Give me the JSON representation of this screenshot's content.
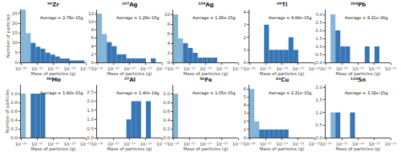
{
  "chart_data": [
    {
      "type": "histogram",
      "title": "⁹⁰Zr",
      "annotation": "Average = 2.78e-15g",
      "log": "x",
      "grid": false,
      "xlabel": "Mass of particles (g)",
      "ylabel": "Number of particles",
      "xlim": [
        1e-16,
        1e-12
      ],
      "xticks": [
        {
          "value": 1e-16,
          "label": "10⁻¹⁶"
        },
        {
          "value": 1e-15,
          "label": "10⁻¹⁵"
        },
        {
          "value": 1e-14,
          "label": "10⁻¹⁴"
        },
        {
          "value": 1e-13,
          "label": "10⁻¹³"
        },
        {
          "value": 1e-12,
          "label": "10⁻¹²"
        }
      ],
      "ylim": [
        0,
        27
      ],
      "yticks": [
        0,
        5,
        10,
        15,
        20,
        25
      ],
      "x_left": [
        1e-16,
        2e-16,
        4e-16,
        8e-16,
        1.6e-15,
        3.2e-15,
        6.4e-15,
        1.28e-14,
        2.56e-14,
        5.12e-14,
        1.024e-13,
        2.048e-13,
        4.096e-13
      ],
      "x_right": [
        2e-16,
        4e-16,
        8e-16,
        1.6e-15,
        3.2e-15,
        6.4e-15,
        1.28e-14,
        2.56e-14,
        5.12e-14,
        1.024e-13,
        2.048e-13,
        4.096e-13,
        8.192e-13
      ],
      "values": [
        27,
        15,
        10,
        8,
        7,
        5,
        4,
        3,
        2,
        2,
        1,
        1,
        1
      ],
      "colors": [
        "#74add1",
        "#74add1",
        "#2166ac",
        "#2166ac",
        "#2166ac",
        "#2166ac",
        "#2166ac",
        "#2166ac",
        "#2166ac",
        "#2166ac",
        "#2166ac",
        "#2166ac",
        "#2166ac"
      ],
      "shaded_region": {
        "x": [
          1e-16,
          3.2e-16
        ],
        "color": "#f4a6a0"
      },
      "vline": {
        "x": 2.78e-15,
        "color": "#cc2222"
      }
    },
    {
      "type": "histogram",
      "title": "¹⁰⁷Ag",
      "annotation": "Average = 1.29e-15g",
      "log": "x",
      "grid": false,
      "xlabel": "Mass of particles (g)",
      "xlim": [
        1e-16,
        1e-12
      ],
      "xticks": [
        {
          "value": 1e-16,
          "label": "10⁻¹⁶"
        },
        {
          "value": 1e-15,
          "label": "10⁻¹⁵"
        },
        {
          "value": 1e-14,
          "label": "10⁻¹⁴"
        },
        {
          "value": 1e-13,
          "label": "10⁻¹³"
        },
        {
          "value": 1e-12,
          "label": "10⁻¹²"
        }
      ],
      "ylim": [
        0,
        13
      ],
      "yticks": [
        0,
        2,
        4,
        6,
        8,
        10,
        12
      ],
      "x_left": [
        1e-16,
        2e-16,
        4e-16,
        8e-16,
        1.6e-15,
        3.2e-15,
        6.4e-15,
        1.28e-14,
        2.56e-14,
        5.12e-14,
        2.048e-13
      ],
      "x_right": [
        2e-16,
        4e-16,
        8e-16,
        1.6e-15,
        3.2e-15,
        6.4e-15,
        1.28e-14,
        2.56e-14,
        5.12e-14,
        1.024e-13,
        4.096e-13
      ],
      "values": [
        12,
        7,
        5,
        4,
        2,
        2,
        1,
        1,
        1,
        1,
        1
      ],
      "colors": [
        "#74add1",
        "#74add1",
        "#2166ac",
        "#2166ac",
        "#2166ac",
        "#2166ac",
        "#2166ac",
        "#2166ac",
        "#2166ac",
        "#2166ac",
        "#2166ac"
      ],
      "shaded_region": {
        "x": [
          1e-16,
          3.2e-16
        ],
        "color": "#f4a6a0"
      },
      "vline": {
        "x": 1.29e-15,
        "color": "#cc2222"
      }
    },
    {
      "type": "histogram",
      "title": "¹⁰⁹Ag",
      "annotation": "Average = 1.26e-15g",
      "log": "x",
      "grid": false,
      "xlabel": "Mass of particles (g)",
      "xlim": [
        1e-16,
        1e-12
      ],
      "xticks": [
        {
          "value": 1e-16,
          "label": "10⁻¹⁶"
        },
        {
          "value": 1e-15,
          "label": "10⁻¹⁵"
        },
        {
          "value": 1e-14,
          "label": "10⁻¹⁴"
        },
        {
          "value": 1e-13,
          "label": "10⁻¹³"
        },
        {
          "value": 1e-12,
          "label": "10⁻¹²"
        }
      ],
      "ylim": [
        0,
        11
      ],
      "yticks": [
        0,
        2,
        4,
        6,
        8,
        10
      ],
      "x_left": [
        1e-16,
        2e-16,
        4e-16,
        8e-16,
        1.6e-15,
        3.2e-15,
        6.4e-15,
        1.28e-14,
        2.56e-14
      ],
      "x_right": [
        2e-16,
        4e-16,
        8e-16,
        1.6e-15,
        3.2e-15,
        6.4e-15,
        1.28e-14,
        2.56e-14,
        5.12e-14
      ],
      "values": [
        10,
        5,
        4,
        3,
        2,
        1,
        1,
        1,
        1
      ],
      "colors": [
        "#74add1",
        "#74add1",
        "#2166ac",
        "#2166ac",
        "#2166ac",
        "#2166ac",
        "#2166ac",
        "#2166ac",
        "#2166ac"
      ],
      "shaded_region": {
        "x": [
          1e-16,
          3.2e-16
        ],
        "color": "#f4a6a0"
      },
      "vline": {
        "x": 1.26e-15,
        "color": "#cc2222"
      }
    },
    {
      "type": "histogram",
      "title": "⁴⁸Ti",
      "annotation": "Average = 9.84e-15g",
      "log": "x",
      "grid": false,
      "xlabel": "Mass of particles (g)",
      "xlim": [
        1e-16,
        1e-12
      ],
      "xticks": [
        {
          "value": 1e-16,
          "label": "10⁻¹⁶"
        },
        {
          "value": 1e-15,
          "label": "10⁻¹⁵"
        },
        {
          "value": 1e-14,
          "label": "10⁻¹⁴"
        },
        {
          "value": 1e-13,
          "label": "10⁻¹³"
        },
        {
          "value": 1e-12,
          "label": "10⁻¹²"
        }
      ],
      "ylim": [
        0,
        4.2
      ],
      "yticks": [
        0,
        1,
        2,
        3,
        4
      ],
      "x_left": [
        8e-16,
        1.6e-15,
        3.2e-15,
        6.4e-15,
        1.28e-14,
        2.56e-14,
        5.12e-14
      ],
      "x_right": [
        1.6e-15,
        3.2e-15,
        6.4e-15,
        1.28e-14,
        2.56e-14,
        5.12e-14,
        1.024e-13
      ],
      "values": [
        3,
        1,
        1,
        1,
        1,
        2,
        1
      ],
      "colors": [
        "#2166ac",
        "#2166ac",
        "#2166ac",
        "#2166ac",
        "#2166ac",
        "#2166ac",
        "#2166ac"
      ],
      "shaded_region": {
        "x": [
          1e-16,
          3.2e-16
        ],
        "color": "#f4a6a0"
      },
      "vline": {
        "x": 9.84e-15,
        "color": "#cc2222"
      }
    },
    {
      "type": "histogram",
      "title": "²⁰⁸Pb",
      "annotation": "Average = 8.21e-16g",
      "log": "x",
      "grid": false,
      "xlabel": "Mass of particles (g)",
      "xlim": [
        1e-16,
        1e-12
      ],
      "xticks": [
        {
          "value": 1e-16,
          "label": "10⁻¹⁶"
        },
        {
          "value": 1e-15,
          "label": "10⁻¹⁵"
        },
        {
          "value": 1e-14,
          "label": "10⁻¹⁴"
        },
        {
          "value": 1e-13,
          "label": "10⁻¹³"
        },
        {
          "value": 1e-12,
          "label": "10⁻¹²"
        }
      ],
      "ylim": [
        0,
        3.3
      ],
      "yticks": [
        {
          "value": 0,
          "label": "0.0"
        },
        0.5,
        {
          "value": 1,
          "label": "1.0"
        },
        1.5,
        {
          "value": 2,
          "label": "2.0"
        },
        2.5,
        {
          "value": 3,
          "label": "3.0"
        }
      ],
      "x_left": [
        2e-16,
        4e-16,
        8e-16,
        1.6e-15,
        2.56e-14,
        1.024e-13
      ],
      "x_right": [
        4e-16,
        8e-16,
        1.6e-15,
        3.2e-15,
        5.12e-14,
        2.048e-13
      ],
      "values": [
        3,
        2,
        1,
        1,
        1,
        1
      ],
      "colors": [
        "#74add1",
        "#2166ac",
        "#2166ac",
        "#2166ac",
        "#2166ac",
        "#2166ac"
      ],
      "shaded_region": {
        "x": [
          1e-16,
          3.2e-16
        ],
        "color": "#f4a6a0"
      },
      "vline": {
        "x": 8.21e-16,
        "color": "#cc2222"
      }
    },
    {
      "type": "histogram",
      "title": "⁹⁸Mo",
      "annotation": "Average = 1.60e-15g",
      "log": "x",
      "grid": false,
      "xlabel": "Mass of particles (g)",
      "ylabel": "Number of particles",
      "xlim": [
        1e-16,
        1e-12
      ],
      "xticks": [
        {
          "value": 1e-16,
          "label": "10⁻¹⁶"
        },
        {
          "value": 1e-15,
          "label": "10⁻¹⁵"
        },
        {
          "value": 1e-14,
          "label": "10⁻¹⁴"
        },
        {
          "value": 1e-13,
          "label": "10⁻¹³"
        },
        {
          "value": 1e-12,
          "label": "10⁻¹²"
        }
      ],
      "ylim": [
        0,
        1.2
      ],
      "yticks": [
        {
          "value": 0,
          "label": "0.0"
        },
        0.2,
        0.4,
        0.6,
        0.8,
        {
          "value": 1,
          "label": "1.0"
        }
      ],
      "x_left": [
        1e-16,
        4e-16,
        8e-16,
        1.6e-15
      ],
      "x_right": [
        2e-16,
        8e-16,
        1.6e-15,
        3.2e-15
      ],
      "values": [
        1.0,
        1.0,
        1.0,
        1.0
      ],
      "colors": [
        "#74add1",
        "#2166ac",
        "#2166ac",
        "#2166ac"
      ],
      "shaded_region": {
        "x": [
          1e-16,
          3.2e-16
        ],
        "color": "#f4a6a0"
      },
      "vline": {
        "x": 1.6e-15,
        "color": "#cc2222"
      }
    },
    {
      "type": "histogram",
      "title": "²⁷Al",
      "annotation": "Average = 1.40e-14g",
      "log": "x",
      "grid": false,
      "xlabel": "Mass of particles (g)",
      "xlim": [
        1e-16,
        1e-12
      ],
      "xticks": [
        {
          "value": 1e-16,
          "label": "10⁻¹⁶"
        },
        {
          "value": 1e-15,
          "label": "10⁻¹⁵"
        },
        {
          "value": 1e-14,
          "label": "10⁻¹⁴"
        },
        {
          "value": 1e-13,
          "label": "10⁻¹³"
        },
        {
          "value": 1e-12,
          "label": "10⁻¹²"
        }
      ],
      "ylim": [
        0,
        2.9
      ],
      "yticks": [
        {
          "value": 0,
          "label": "0.0"
        },
        0.5,
        {
          "value": 1,
          "label": "1.0"
        },
        1.5,
        {
          "value": 2,
          "label": "2.0"
        },
        2.5
      ],
      "x_left": [
        6.4e-15,
        1.28e-14,
        2.56e-14,
        1.024e-13
      ],
      "x_right": [
        1.28e-14,
        2.56e-14,
        5.12e-14,
        2.048e-13
      ],
      "values": [
        1.0,
        2.0,
        2.0,
        2.0
      ],
      "colors": [
        "#2166ac",
        "#2166ac",
        "#2166ac",
        "#2166ac"
      ],
      "shaded_region": {
        "x": [
          1e-16,
          3.2e-16
        ],
        "color": "#f4a6a0"
      },
      "vline": {
        "x": 1.4e-14,
        "color": "#cc2222"
      }
    },
    {
      "type": "histogram",
      "title": "⁵⁶Fe",
      "annotation": "Average = 1.05e-15g",
      "log": "x",
      "grid": false,
      "xlabel": "Mass of particles (g)",
      "xlim": [
        1e-16,
        1e-12
      ],
      "xticks": [
        {
          "value": 1e-16,
          "label": "10⁻¹⁶"
        },
        {
          "value": 1e-15,
          "label": "10⁻¹⁵"
        },
        {
          "value": 1e-14,
          "label": "10⁻¹⁴"
        },
        {
          "value": 1e-13,
          "label": "10⁻¹³"
        },
        {
          "value": 1e-12,
          "label": "10⁻¹²"
        }
      ],
      "ylim": [
        0,
        1.2
      ],
      "yticks": [
        {
          "value": 0,
          "label": "0.0"
        },
        0.2,
        0.4,
        0.6,
        0.8,
        {
          "value": 1,
          "label": "1.0"
        }
      ],
      "x_left": [
        1e-16
      ],
      "x_right": [
        2e-16
      ],
      "values": [
        1.0
      ],
      "colors": [
        "#74add1"
      ],
      "shaded_region": {
        "x": [
          1e-16,
          3.2e-16
        ],
        "color": "#f4a6a0"
      },
      "vline": {
        "x": 1.05e-15,
        "color": "#cc2222"
      }
    },
    {
      "type": "histogram",
      "title": "⁶³Cu",
      "annotation": "Average = 2.21e-15g",
      "log": "x",
      "grid": false,
      "xlabel": "Mass of particles (g)",
      "xlim": [
        1e-16,
        1e-12
      ],
      "xticks": [
        {
          "value": 1e-16,
          "label": "10⁻¹⁶"
        },
        {
          "value": 1e-15,
          "label": "10⁻¹⁵"
        },
        {
          "value": 1e-14,
          "label": "10⁻¹⁴"
        },
        {
          "value": 1e-13,
          "label": "10⁻¹³"
        },
        {
          "value": 1e-12,
          "label": "10⁻¹²"
        }
      ],
      "ylim": [
        0,
        6.5
      ],
      "yticks": [
        0,
        1,
        2,
        3,
        4,
        5,
        6
      ],
      "x_left": [
        1e-16,
        2e-16,
        4e-16,
        8e-16,
        1.6e-15,
        3.2e-15,
        6.4e-15,
        1.28e-14
      ],
      "x_right": [
        2e-16,
        4e-16,
        8e-16,
        1.6e-15,
        3.2e-15,
        6.4e-15,
        1.28e-14,
        2.56e-14
      ],
      "values": [
        6,
        2,
        1,
        1,
        1,
        1,
        1,
        1
      ],
      "colors": [
        "#74add1",
        "#74add1",
        "#2166ac",
        "#2166ac",
        "#2166ac",
        "#2166ac",
        "#2166ac",
        "#2166ac"
      ],
      "shaded_region": {
        "x": [
          1e-16,
          3.2e-16
        ],
        "color": "#f4a6a0"
      },
      "vline": {
        "x": 2.21e-15,
        "color": "#cc2222"
      }
    },
    {
      "type": "histogram",
      "title": "¹²⁰Sn",
      "annotation": "Average = 3.32e-15g",
      "log": "x",
      "grid": false,
      "xlabel": "Mass of particles (g)",
      "xlim": [
        1e-16,
        1e-12
      ],
      "xticks": [
        {
          "value": 1e-16,
          "label": "10⁻¹⁶"
        },
        {
          "value": 1e-15,
          "label": "10⁻¹⁵"
        },
        {
          "value": 1e-14,
          "label": "10⁻¹⁴"
        },
        {
          "value": 1e-13,
          "label": "10⁻¹³"
        },
        {
          "value": 1e-12,
          "label": "10⁻¹²"
        }
      ],
      "ylim": [
        0,
        2.1
      ],
      "yticks": [
        {
          "value": 0,
          "label": "0.0"
        },
        0.5,
        {
          "value": 1,
          "label": "1.0"
        },
        1.5,
        {
          "value": 2,
          "label": "2.0"
        }
      ],
      "x_left": [
        2e-16,
        4e-16,
        3.2e-15
      ],
      "x_right": [
        4e-16,
        8e-16,
        6.4e-15
      ],
      "values": [
        1.0,
        1.0,
        1.0
      ],
      "colors": [
        "#74add1",
        "#2166ac",
        "#2166ac"
      ],
      "shaded_region": {
        "x": [
          1e-16,
          3.2e-16
        ],
        "color": "#f4a6a0"
      },
      "vline": {
        "x": 3.32e-15,
        "color": "#cc2222"
      }
    }
  ]
}
